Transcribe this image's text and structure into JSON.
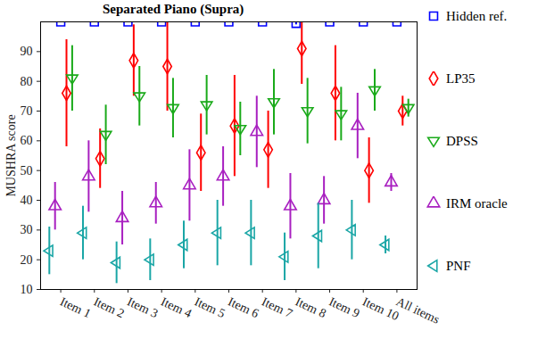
{
  "chart_data": {
    "type": "scatter",
    "title": "Separated Piano (Supra)",
    "y_label": "MUSHRA score",
    "categories": [
      "Item 1",
      "Item 2",
      "Item 3",
      "Item 4",
      "Item 5",
      "Item 6",
      "Item 7",
      "Item 8",
      "Item 9",
      "Item 10",
      "All items"
    ],
    "ylim": [
      10,
      100
    ],
    "yticks": [
      10,
      20,
      30,
      40,
      50,
      60,
      70,
      80,
      90
    ],
    "legend": "right",
    "series": [
      {
        "name": "Hidden ref.",
        "color": "#0000ff",
        "marker": "square",
        "values": [
          100,
          100,
          100,
          100,
          100,
          100,
          100,
          99.5,
          100,
          100,
          100
        ],
        "error": [
          0,
          0,
          0,
          0,
          0,
          0,
          0,
          0.5,
          0,
          0,
          0
        ]
      },
      {
        "name": "LP35",
        "color": "#ff0000",
        "marker": "diamond",
        "values": [
          76,
          54,
          87,
          85,
          56,
          65,
          57,
          91,
          76,
          50,
          70
        ],
        "error": [
          18,
          10,
          12,
          15,
          13,
          17,
          13,
          12,
          16,
          11,
          5
        ]
      },
      {
        "name": "DPSS",
        "color": "#1aaa1a",
        "marker": "triangle-down",
        "values": [
          81,
          62,
          75,
          71,
          72,
          64,
          73,
          70,
          69,
          77,
          71
        ],
        "error": [
          11,
          10,
          10,
          10,
          10,
          9,
          11,
          11,
          9,
          7,
          3
        ]
      },
      {
        "name": "IRM oracle",
        "color": "#a81fc0",
        "marker": "triangle-up",
        "values": [
          38,
          48,
          34,
          39,
          45,
          48,
          63,
          38,
          40,
          65,
          46
        ],
        "error": [
          8,
          12,
          9,
          7,
          12,
          10,
          12,
          11,
          8,
          11,
          3
        ]
      },
      {
        "name": "PNF",
        "color": "#1aa6a6",
        "marker": "triangle-left",
        "values": [
          23,
          29,
          19,
          20,
          25,
          29,
          29,
          21,
          28,
          30,
          25
        ],
        "error": [
          8,
          9,
          7,
          7,
          8,
          11,
          11,
          8,
          11,
          10,
          3
        ]
      }
    ]
  }
}
